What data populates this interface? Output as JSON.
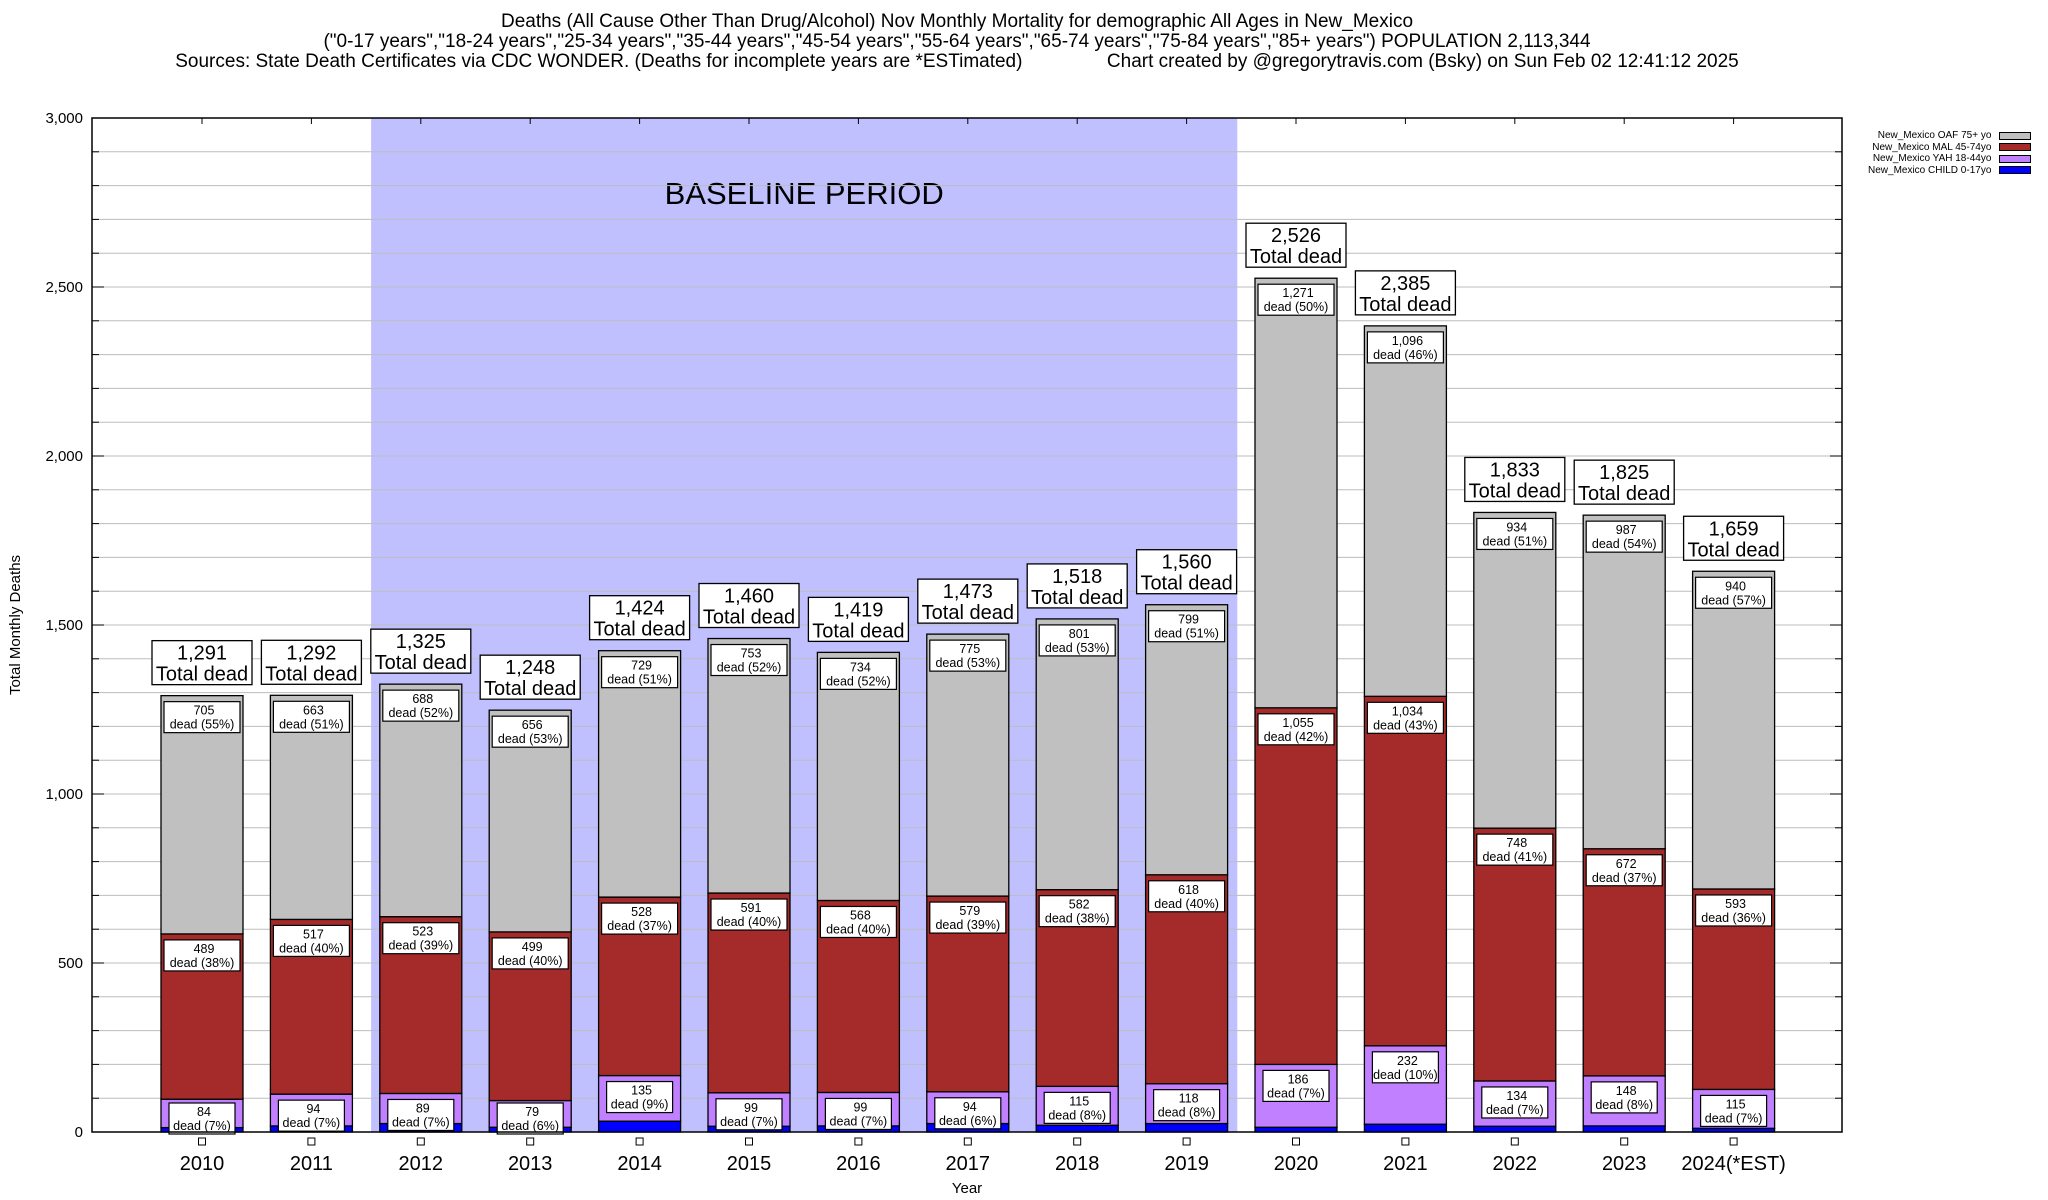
{
  "title": {
    "line1": "Deaths (All Cause Other Than Drug/Alcohol) Nov Monthly Mortality for demographic All Ages in New_Mexico",
    "line2": "(\"0-17 years\",\"18-24 years\",\"25-34 years\",\"35-44 years\",\"45-54 years\",\"55-64 years\",\"65-74 years\",\"75-84 years\",\"85+ years\") POPULATION 2,113,344",
    "line3": "Sources: State Death Certificates via CDC WONDER. (Deaths for incomplete years are *ESTimated)                Chart created by @gregorytravis.com (Bsky) on Sun Feb 02 12:41:12 2025"
  },
  "legend": [
    {
      "label": "New_Mexico OAF 75+ yo",
      "color": "#c0c0c0"
    },
    {
      "label": "New_Mexico MAL 45-74yo",
      "color": "#a52a2a"
    },
    {
      "label": "New_Mexico YAH 18-44yo",
      "color": "#c080ff"
    },
    {
      "label": "New_Mexico CHILD 0-17yo",
      "color": "#0000ff"
    }
  ],
  "chart_data": {
    "type": "bar",
    "stacked": true,
    "title": "Deaths (All Cause Other Than Drug/Alcohol) Nov Monthly Mortality for demographic All Ages in New_Mexico",
    "xlabel": "Year",
    "ylabel": "Total Monthly Deaths",
    "ylim": [
      0,
      3000
    ],
    "yticks": [
      0,
      500,
      1000,
      1500,
      2000,
      2500,
      3000
    ],
    "ytick_labels": [
      "0",
      "500",
      "1,000",
      "1,500",
      "2,000",
      "2,500",
      "3,000"
    ],
    "minor_ytick_step": 100,
    "grid": true,
    "legend_position": "top-right",
    "categories": [
      "2010",
      "2011",
      "2012",
      "2013",
      "2014",
      "2015",
      "2016",
      "2017",
      "2018",
      "2019",
      "2020",
      "2021",
      "2022",
      "2023",
      "2024(*EST)"
    ],
    "series": [
      {
        "name": "New_Mexico CHILD 0-17yo",
        "color": "#0000ff",
        "values": [
          13,
          18,
          25,
          14,
          32,
          17,
          18,
          25,
          20,
          25,
          14,
          23,
          17,
          18,
          11
        ],
        "labels": [
          "",
          "",
          "",
          "",
          "",
          "",
          "",
          "",
          "",
          "",
          "",
          "",
          "",
          "",
          ""
        ]
      },
      {
        "name": "New_Mexico YAH 18-44yo",
        "color": "#c080ff",
        "values": [
          84,
          94,
          89,
          79,
          135,
          99,
          99,
          94,
          115,
          118,
          186,
          232,
          134,
          148,
          115
        ],
        "labels": [
          "84\ndead (7%)",
          "94\ndead (7%)",
          "89\ndead (7%)",
          "79\ndead (6%)",
          "135\ndead (9%)",
          "99\ndead (7%)",
          "99\ndead (7%)",
          "94\ndead (6%)",
          "115\ndead (8%)",
          "118\ndead (8%)",
          "186\ndead (7%)",
          "232\ndead (10%)",
          "134\ndead (7%)",
          "148\ndead (8%)",
          "115\ndead (7%)"
        ]
      },
      {
        "name": "New_Mexico MAL 45-74yo",
        "color": "#a52a2a",
        "values": [
          489,
          517,
          523,
          499,
          528,
          591,
          568,
          579,
          582,
          618,
          1055,
          1034,
          748,
          672,
          593
        ],
        "labels": [
          "489\ndead (38%)",
          "517\ndead (40%)",
          "523\ndead (39%)",
          "499\ndead (40%)",
          "528\ndead (37%)",
          "591\ndead (40%)",
          "568\ndead (40%)",
          "579\ndead (39%)",
          "582\ndead (38%)",
          "618\ndead (40%)",
          "1,055\ndead (42%)",
          "1,034\ndead (43%)",
          "748\ndead (41%)",
          "672\ndead (37%)",
          "593\ndead (36%)"
        ]
      },
      {
        "name": "New_Mexico OAF 75+ yo",
        "color": "#c0c0c0",
        "values": [
          705,
          663,
          688,
          656,
          729,
          753,
          734,
          775,
          801,
          799,
          1271,
          1096,
          934,
          987,
          940
        ],
        "labels": [
          "705\ndead (55%)",
          "663\ndead (51%)",
          "688\ndead (52%)",
          "656\ndead (53%)",
          "729\ndead (51%)",
          "753\ndead (52%)",
          "734\ndead (52%)",
          "775\ndead (53%)",
          "801\ndead (53%)",
          "799\ndead (51%)",
          "1,271\ndead (50%)",
          "1,096\ndead (46%)",
          "934\ndead (51%)",
          "987\ndead (54%)",
          "940\ndead (57%)"
        ]
      }
    ],
    "totals": [
      1291,
      1292,
      1325,
      1248,
      1424,
      1460,
      1419,
      1473,
      1518,
      1560,
      2526,
      2385,
      1833,
      1825,
      1659
    ],
    "total_labels": [
      "1,291\nTotal dead",
      "1,292\nTotal dead",
      "1,325\nTotal dead",
      "1,248\nTotal dead",
      "1,424\nTotal dead",
      "1,460\nTotal dead",
      "1,419\nTotal dead",
      "1,473\nTotal dead",
      "1,518\nTotal dead",
      "1,560\nTotal dead",
      "2,526\nTotal dead",
      "2,385\nTotal dead",
      "1,833\nTotal dead",
      "1,825\nTotal dead",
      "1,659\nTotal dead"
    ],
    "annotations": [
      {
        "type": "shaded-region",
        "label": "BASELINE PERIOD",
        "from_category": "2012",
        "to_category": "2019",
        "color": "#c0c0ff"
      }
    ]
  }
}
